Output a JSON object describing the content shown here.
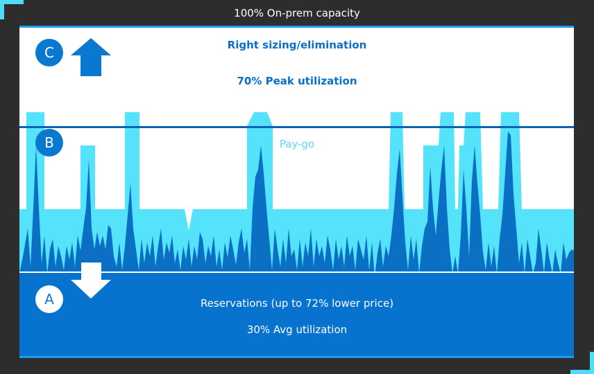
{
  "header": {
    "title": "100% On-prem capacity"
  },
  "tiers": {
    "c": {
      "badge": "C",
      "line1": "Right sizing/elimination",
      "line2": "70% Peak utilization"
    },
    "b": {
      "badge": "B",
      "line1": "Pay-go"
    },
    "a": {
      "badge": "A",
      "line1": "Reservations (up to 72% lower price)",
      "line2": "30% Avg utilization"
    }
  },
  "icons": {
    "up": "arrow-up-icon",
    "down": "arrow-down-icon"
  },
  "colors": {
    "frame": "#2d2d2d",
    "accent_cyan": "#4fdcfa",
    "payg": "#55e2fb",
    "usage": "#0b6fc4",
    "reservations": "#0872cf",
    "text_blue": "#0a6fc8",
    "white": "#ffffff"
  }
}
